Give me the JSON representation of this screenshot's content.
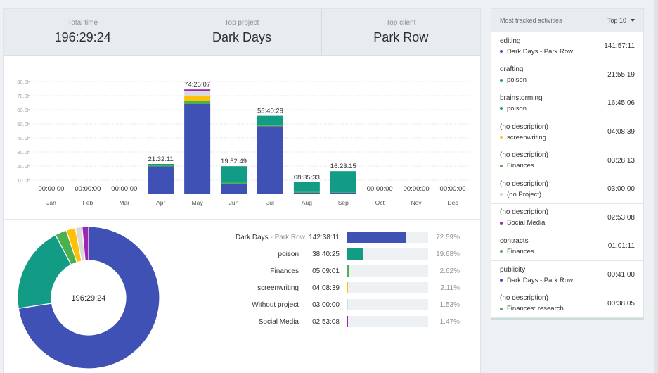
{
  "summary": {
    "total_label": "Total time",
    "total_value": "196:29:24",
    "project_label": "Top project",
    "project_value": "Dark Days",
    "client_label": "Top client",
    "client_value": "Park Row"
  },
  "chart_data": [
    {
      "type": "bar",
      "stacked": true,
      "categories": [
        "Jan",
        "Feb",
        "Mar",
        "Apr",
        "May",
        "Jun",
        "Jul",
        "Aug",
        "Sep",
        "Oct",
        "Nov",
        "Dec"
      ],
      "total_labels": [
        "00:00:00",
        "00:00:00",
        "00:00:00",
        "21:32:11",
        "74:25:07",
        "19:52:49",
        "55:40:29",
        "08:35:33",
        "16:23:15",
        "00:00:00",
        "00:00:00",
        "00:00:00"
      ],
      "y_ticks": [
        "10.0h",
        "20.0h",
        "30.0h",
        "40.0h",
        "50.0h",
        "60.0h",
        "70.0h",
        "80.0h"
      ],
      "ylim": [
        0,
        80
      ],
      "grid": true,
      "series": [
        {
          "color": "#3f51b5",
          "values": [
            0,
            0,
            0,
            19.8,
            64,
            7.5,
            47.5,
            1.0,
            1.0,
            0,
            0,
            0
          ]
        },
        {
          "color": "#6a3fa0",
          "values": [
            0,
            0,
            0,
            0,
            0,
            0,
            0.8,
            0,
            0,
            0,
            0,
            0
          ]
        },
        {
          "color": "#4caf50",
          "values": [
            0,
            0,
            0,
            1.0,
            2.0,
            0.7,
            0.6,
            0.6,
            0.3,
            0,
            0,
            0
          ]
        },
        {
          "color": "#129b85",
          "values": [
            0,
            0,
            0,
            0.7,
            0,
            11.7,
            6.8,
            7.0,
            15.1,
            0,
            0,
            0
          ]
        },
        {
          "color": "#ffc107",
          "values": [
            0,
            0,
            0,
            0,
            4.1,
            0,
            0,
            0,
            0,
            0,
            0,
            0
          ]
        },
        {
          "color": "#d9d9d9",
          "values": [
            0,
            0,
            0,
            0,
            3.0,
            0,
            0,
            0,
            0,
            0,
            0,
            0
          ]
        },
        {
          "color": "#9c27b0",
          "values": [
            0,
            0,
            0,
            0,
            1.3,
            0,
            0,
            0,
            0,
            0,
            0,
            0
          ]
        }
      ]
    },
    {
      "type": "pie",
      "center_label": "196:29:24",
      "slices": [
        {
          "name": "Dark Days",
          "value": 72.59,
          "color": "#3f51b5"
        },
        {
          "name": "poison",
          "value": 19.68,
          "color": "#129b85"
        },
        {
          "name": "Finances",
          "value": 2.62,
          "color": "#4caf50"
        },
        {
          "name": "screenwriting",
          "value": 2.11,
          "color": "#ffc107"
        },
        {
          "name": "Without project",
          "value": 1.53,
          "color": "#d9d9d9"
        },
        {
          "name": "Social Media",
          "value": 1.47,
          "color": "#9c27b0"
        }
      ]
    }
  ],
  "breakdown": [
    {
      "project": "Dark Days",
      "client": "Park Row",
      "time": "142:38:11",
      "percent": "72.59%",
      "fraction": 0.7259,
      "color": "#3f51b5"
    },
    {
      "project": "poison",
      "client": "",
      "time": "38:40:25",
      "percent": "19.68%",
      "fraction": 0.1968,
      "color": "#129b85"
    },
    {
      "project": "Finances",
      "client": "",
      "time": "05:09:01",
      "percent": "2.62%",
      "fraction": 0.0262,
      "color": "#4caf50"
    },
    {
      "project": "screenwriting",
      "client": "",
      "time": "04:08:39",
      "percent": "2.11%",
      "fraction": 0.0211,
      "color": "#ffc107"
    },
    {
      "project": "Without project",
      "client": "",
      "time": "03:00:00",
      "percent": "1.53%",
      "fraction": 0.0153,
      "color": "#d9d9d9"
    },
    {
      "project": "Social Media",
      "client": "",
      "time": "02:53:08",
      "percent": "1.47%",
      "fraction": 0.0147,
      "color": "#9c27b0"
    }
  ],
  "activities": {
    "title": "Most tracked activities",
    "filter": "Top 10",
    "items": [
      {
        "desc": "editing",
        "project": "Dark Days - Park Row",
        "color": "#3f51b5",
        "time": "141:57:11"
      },
      {
        "desc": "drafting",
        "project": "poison",
        "color": "#129b85",
        "time": "21:55:19"
      },
      {
        "desc": "brainstorming",
        "project": "poison",
        "color": "#129b85",
        "time": "16:45:06"
      },
      {
        "desc": "(no description)",
        "project": "screenwriting",
        "color": "#ffc107",
        "time": "04:08:39"
      },
      {
        "desc": "(no description)",
        "project": "Finances",
        "color": "#4caf50",
        "time": "03:28:13"
      },
      {
        "desc": "(no description)",
        "project": "(no Project)",
        "color": "#d0d0d0",
        "time": "03:00:00"
      },
      {
        "desc": "(no description)",
        "project": "Social Media",
        "color": "#9c27b0",
        "time": "02:53:08"
      },
      {
        "desc": "contracts",
        "project": "Finances",
        "color": "#4caf50",
        "time": "01:01:11"
      },
      {
        "desc": "publicity",
        "project": "Dark Days - Park Row",
        "color": "#3f51b5",
        "time": "00:41:00"
      },
      {
        "desc": "(no description)",
        "project": "Finances: research",
        "color": "#4caf50",
        "time": "00:38:05"
      }
    ]
  }
}
